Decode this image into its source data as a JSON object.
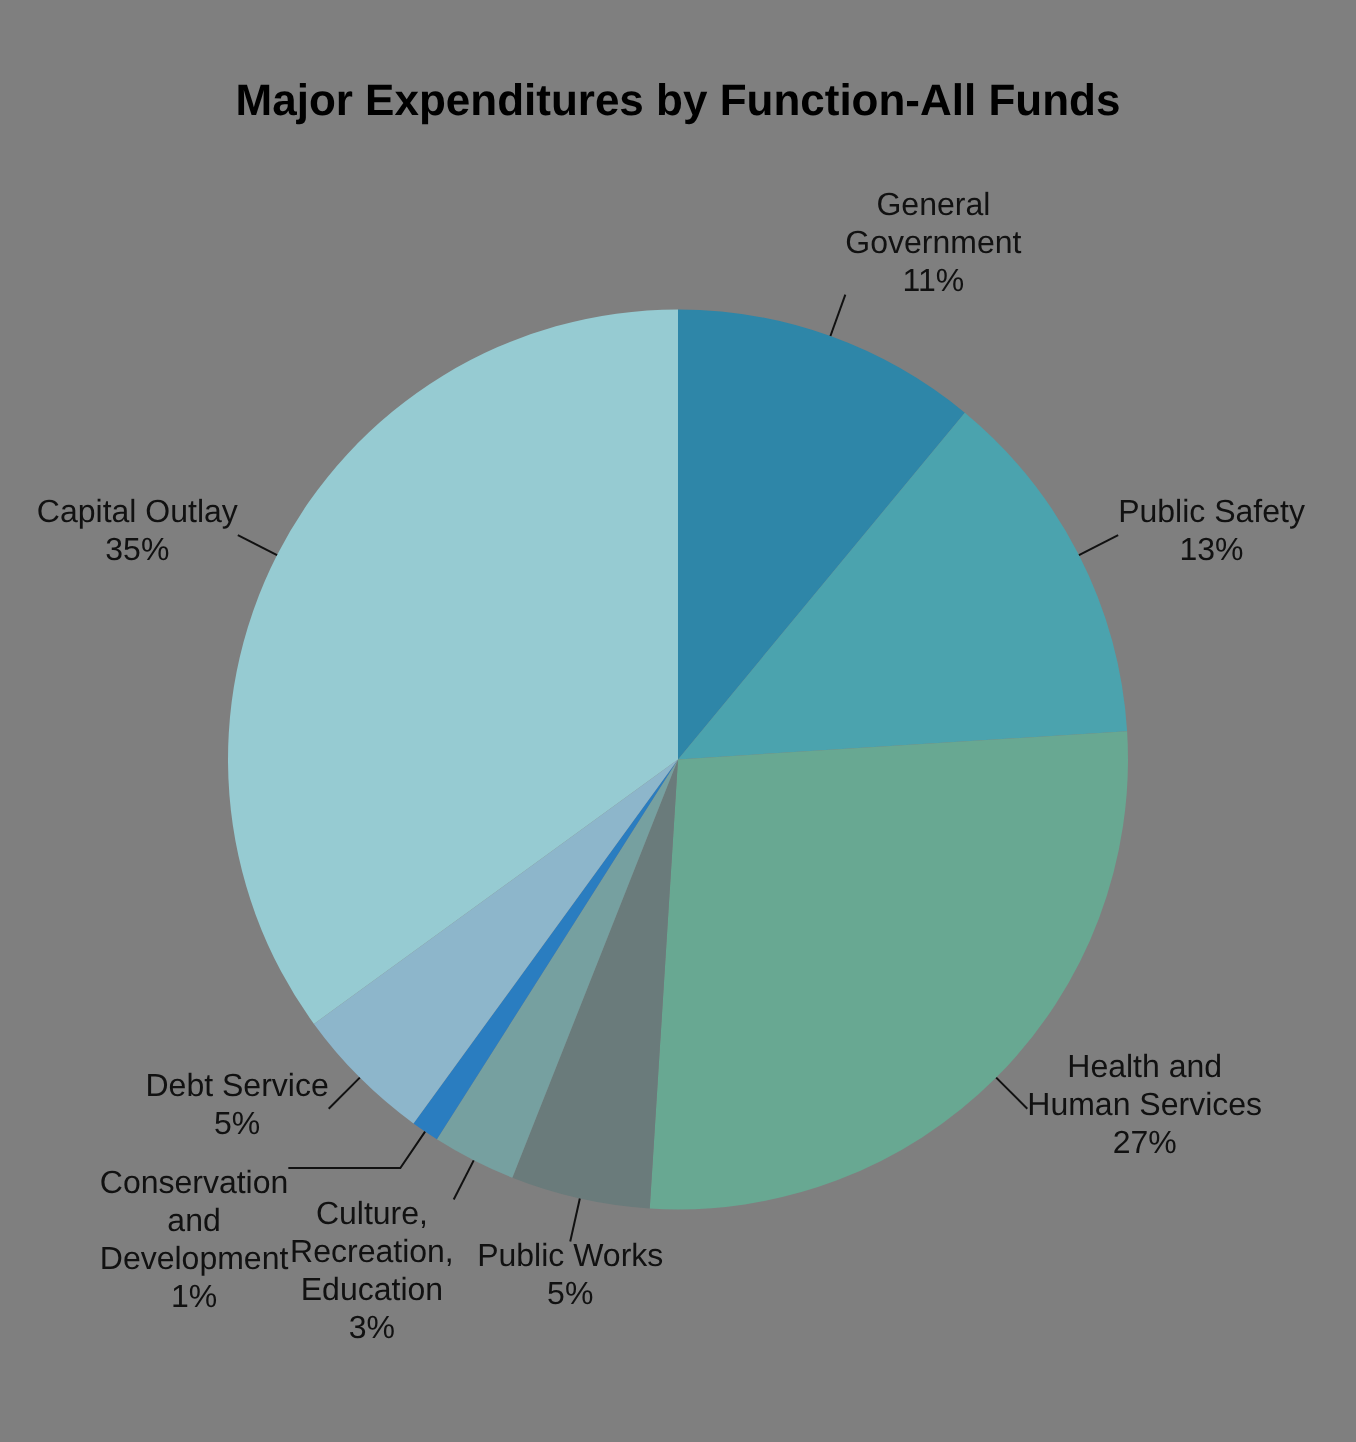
{
  "chart_data": {
    "type": "pie",
    "title": "Major Expenditures by Function-All Funds",
    "categories": [
      "General Government",
      "Public Safety",
      "Health and Human Services",
      "Public Works",
      "Culture, Recreation, Education",
      "Conservation and Development",
      "Debt Service",
      "Capital Outlay"
    ],
    "values": [
      11,
      13,
      27,
      5,
      3,
      1,
      5,
      35
    ],
    "colors": [
      "#2e86a8",
      "#4ba3ae",
      "#68a892",
      "#6a7b7b",
      "#76a0a0",
      "#2a7dc0",
      "#8db6cb",
      "#96cbd2"
    ],
    "value_labels": [
      "11%",
      "13%",
      "27%",
      "5%",
      "3%",
      "1%",
      "5%",
      "35%"
    ]
  }
}
